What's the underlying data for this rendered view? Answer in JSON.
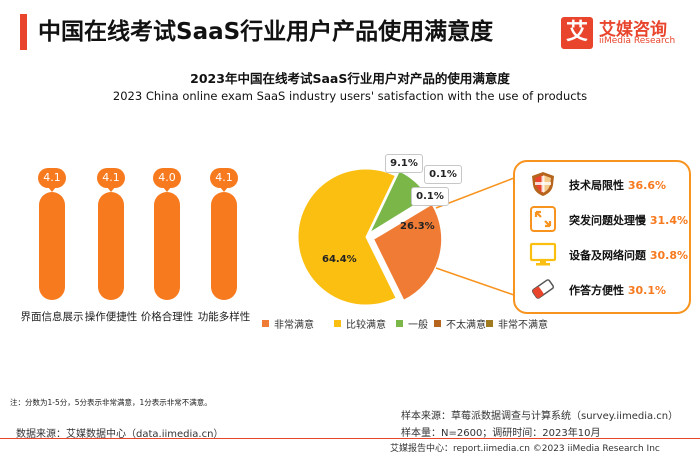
{
  "header": {
    "title": "中国在线考试SaaS行业用户产品使用满意度",
    "logo_mark": "艾",
    "logo_cn": "艾媒咨询",
    "logo_en": "iiMedia Research"
  },
  "chart_data": [
    {
      "type": "bar",
      "title": "2023年中国在线考试SaaS行业用户对产品的使用满意度",
      "subtitle": "2023 China online exam SaaS industry users' satisfaction with the use of products",
      "categories": [
        "界面信息展示",
        "操作便捷性",
        "价格合理性",
        "功能多样性"
      ],
      "values": [
        4.1,
        4.1,
        4.0,
        4.1
      ],
      "value_labels": [
        "4.1",
        "4.1",
        "4.0",
        "4.1"
      ],
      "colors": {
        "bar": "#f77a1f"
      }
    },
    {
      "type": "pie",
      "categories": [
        "非常满意",
        "比较满意",
        "一般",
        "不太满意",
        "非常不满意"
      ],
      "values": [
        26.3,
        64.4,
        9.1,
        0.1,
        0.1
      ],
      "value_labels": [
        "26.3%",
        "64.4%",
        "9.1%",
        "0.1%",
        "0.1%"
      ],
      "colors": [
        "#ef7b35",
        "#fbbf12",
        "#7ab648",
        "#b5651d",
        "#a07a1e"
      ],
      "legend_position": "bottom"
    }
  ],
  "reasons": {
    "items": [
      {
        "label": "技术局限性",
        "value": "36.6%",
        "icon": "shield-icon"
      },
      {
        "label": "突发问题处理慢",
        "value": "31.4%",
        "icon": "expand-arrows-icon"
      },
      {
        "label": "设备及网络问题",
        "value": "30.8%",
        "icon": "monitor-icon"
      },
      {
        "label": "作答方便性",
        "value": "30.1%",
        "icon": "eraser-icon"
      }
    ]
  },
  "notes": {
    "footnote": "注：分数为1-5分，5分表示非常满意，1分表示非常不满意。",
    "data_source": "数据来源：艾媒数据中心（data.iimedia.cn）",
    "sample_source": "样本来源：草莓派数据调查与计算系统（survey.iimedia.cn）",
    "sample_size": "样本量：N=2600；调研时间：2023年10月",
    "footer": "艾媒报告中心：report.iimedia.cn  ©2023  iiMedia Research  Inc"
  }
}
